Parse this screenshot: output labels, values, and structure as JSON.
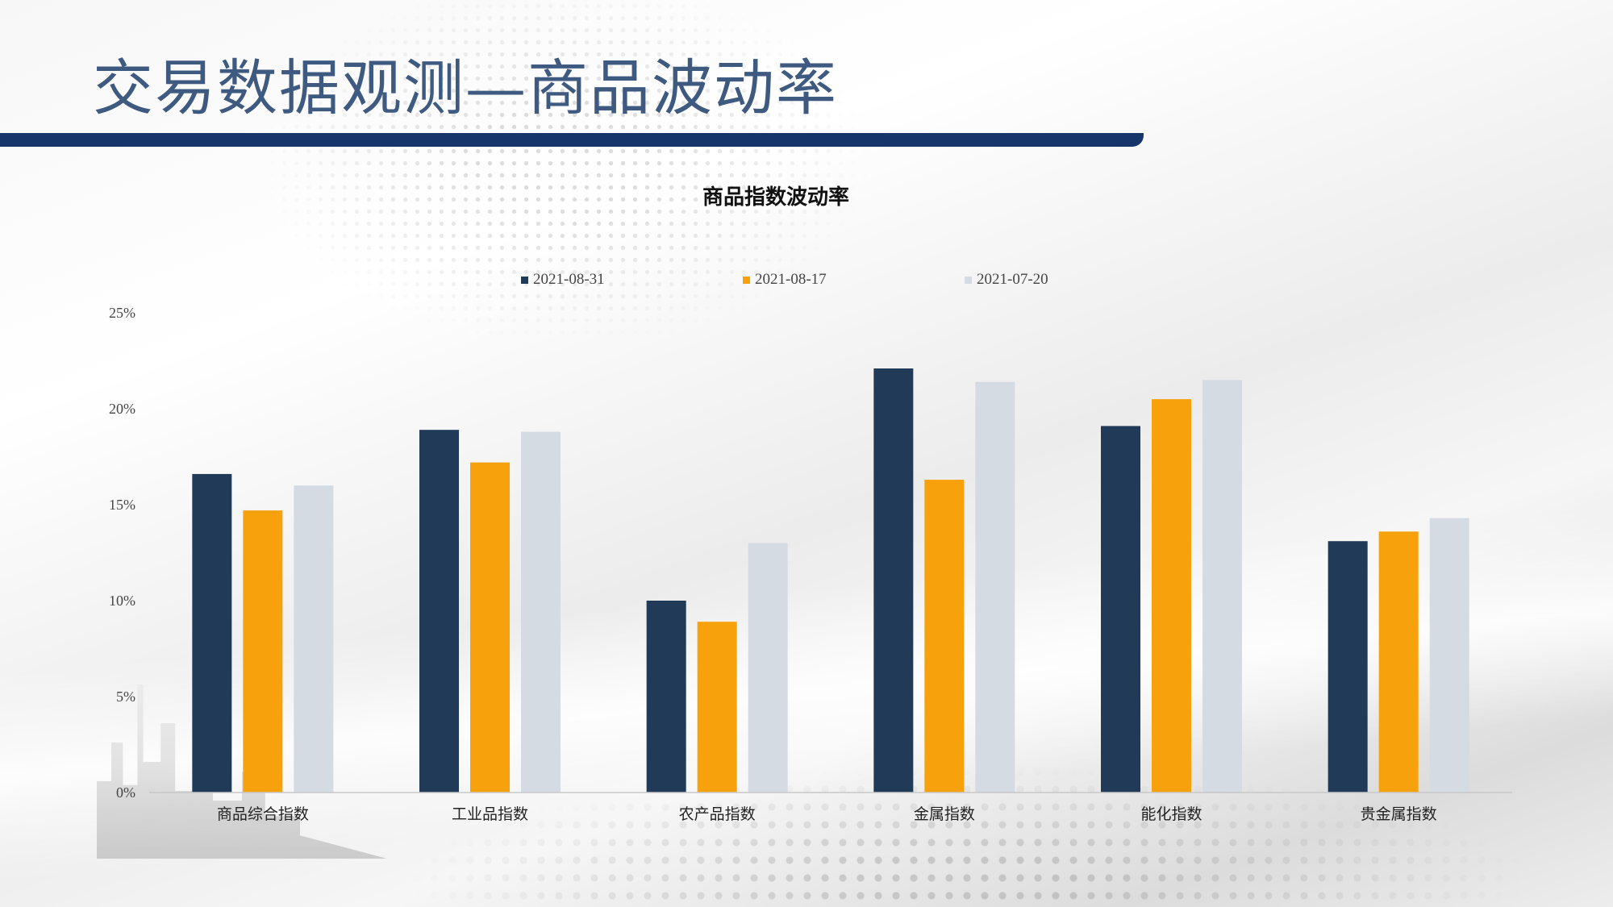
{
  "page": {
    "title": "交易数据观测—商品波动率"
  },
  "colors": {
    "title": "#3e5a80",
    "header_bar": "#16366b"
  },
  "chart_data": {
    "type": "bar",
    "title": "商品指数波动率",
    "categories": [
      "商品综合指数",
      "工业品指数",
      "农产品指数",
      "金属指数",
      "能化指数",
      "贵金属指数"
    ],
    "series": [
      {
        "name": "2021-08-31",
        "color": "#203a57",
        "values": [
          16.6,
          18.9,
          10.0,
          22.1,
          19.1,
          13.1
        ]
      },
      {
        "name": "2021-08-17",
        "color": "#f7a10c",
        "values": [
          14.7,
          17.2,
          8.9,
          16.3,
          20.5,
          13.6
        ]
      },
      {
        "name": "2021-07-20",
        "color": "#d5dbe2",
        "values": [
          16.0,
          18.8,
          13.0,
          21.4,
          21.5,
          14.3
        ]
      }
    ],
    "yticks": [
      "0%",
      "5%",
      "10%",
      "15%",
      "20%",
      "25%"
    ],
    "ylim": [
      0,
      25
    ],
    "legend_position": "top",
    "grid": false
  }
}
